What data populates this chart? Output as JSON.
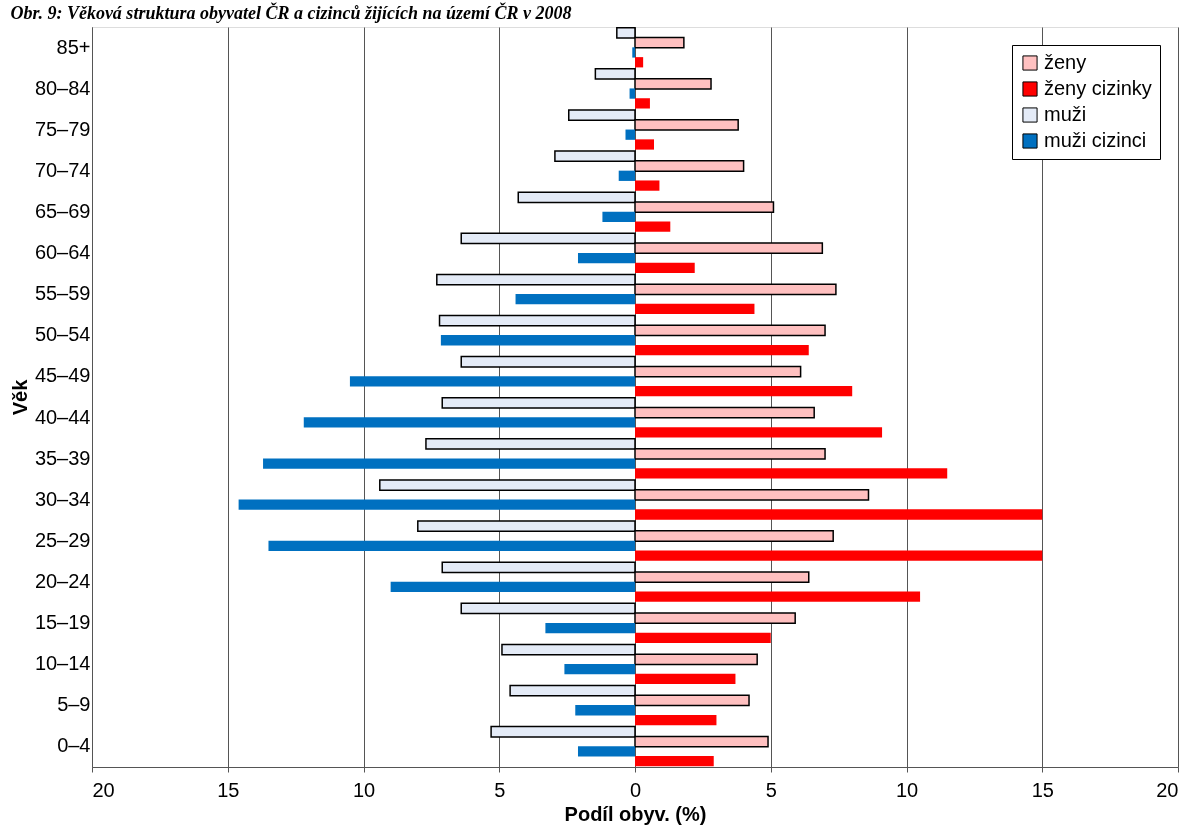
{
  "chart_data": {
    "type": "bar",
    "orientation": "horizontal",
    "title": "Obr. 9: Věková struktura obyvatel ČR a cizinců žijících na území ČR v 2008",
    "xlabel": "Podíl obyv. (%)",
    "ylabel": "Věk",
    "categories": [
      "85+",
      "80–84",
      "75–79",
      "70–74",
      "65–69",
      "60–64",
      "55–59",
      "50–54",
      "45–49",
      "40–44",
      "35–39",
      "30–34",
      "25–29",
      "20–24",
      "15–19",
      "10–14",
      "5–9",
      "0–4"
    ],
    "series": [
      {
        "name": "ženy",
        "color": "#ffc0c0",
        "values": [
          1.8,
          2.8,
          3.8,
          4.0,
          5.1,
          6.9,
          7.4,
          7.0,
          6.1,
          6.6,
          7.0,
          8.6,
          7.3,
          6.4,
          5.9,
          4.5,
          4.2,
          4.9
        ]
      },
      {
        "name": "ženy cizinky",
        "color": "#ff0000",
        "values": [
          0.3,
          0.55,
          0.7,
          0.9,
          1.3,
          2.2,
          4.4,
          6.4,
          8.0,
          9.1,
          11.5,
          15.0,
          15.0,
          10.5,
          5.0,
          3.7,
          3.0,
          2.9
        ]
      },
      {
        "name": "muži",
        "color": "#e4ebf7",
        "values": [
          -0.67,
          -1.46,
          -2.44,
          -2.95,
          -4.3,
          -6.4,
          -7.3,
          -7.2,
          -6.4,
          -7.1,
          -7.7,
          -9.4,
          -8.0,
          -7.1,
          -6.4,
          -4.9,
          -4.6,
          -5.3
        ]
      },
      {
        "name": "muži cizinci",
        "color": "#0070c0",
        "values": [
          -0.1,
          -0.2,
          -0.35,
          -0.6,
          -1.2,
          -2.1,
          -4.4,
          -7.15,
          -10.5,
          -12.2,
          -13.7,
          -14.6,
          -13.5,
          -9.0,
          -3.3,
          -2.6,
          -2.2,
          -2.1
        ]
      }
    ],
    "xlim": [
      -20,
      20
    ],
    "xticks": [
      {
        "value": -20,
        "label": "20"
      },
      {
        "value": -15,
        "label": "15"
      },
      {
        "value": -10,
        "label": "10"
      },
      {
        "value": -5,
        "label": "5"
      },
      0,
      5,
      10,
      15,
      20
    ],
    "grid": "x",
    "legend": "top right"
  }
}
